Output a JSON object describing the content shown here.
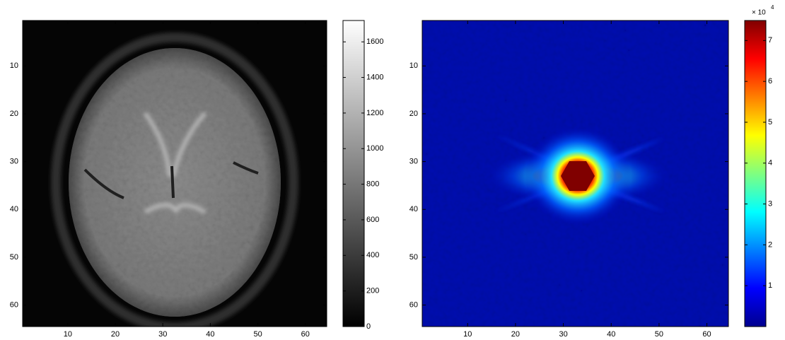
{
  "chart_data": [
    {
      "type": "heatmap",
      "colormap": "gray",
      "xlim": [
        0.5,
        64.5
      ],
      "ylim": [
        0.5,
        64.5
      ],
      "yreverse": true,
      "xticks": [
        10,
        20,
        30,
        40,
        50,
        60
      ],
      "yticks": [
        10,
        20,
        30,
        40,
        50,
        60
      ],
      "colorbar": {
        "ylim": [
          0,
          1720
        ],
        "yticks": [
          0,
          200,
          400,
          600,
          800,
          1000,
          1200,
          1400,
          1600
        ]
      }
    },
    {
      "type": "heatmap",
      "colormap": "jet",
      "xlim": [
        0.5,
        64.5
      ],
      "ylim": [
        0.5,
        64.5
      ],
      "yreverse": true,
      "xticks": [
        10,
        20,
        30,
        40,
        50,
        60
      ],
      "yticks": [
        10,
        20,
        30,
        40,
        50,
        60
      ],
      "colorbar": {
        "ylim": [
          0,
          7.49
        ],
        "yticks": [
          1,
          2,
          3,
          4,
          5,
          6,
          7
        ],
        "scale_label": "× 10",
        "scale_exponent": "4"
      }
    }
  ]
}
